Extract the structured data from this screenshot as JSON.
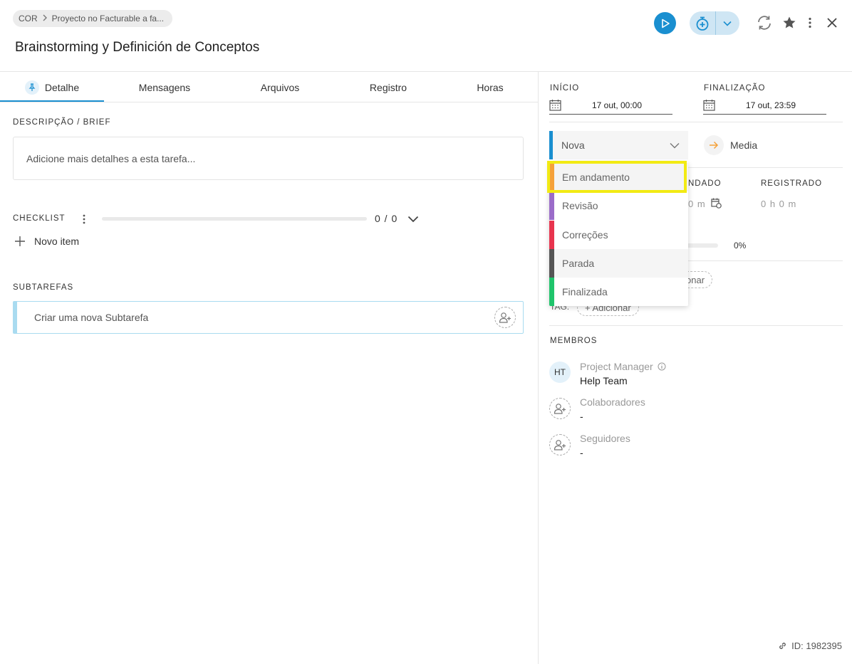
{
  "header": {
    "breadcrumb": {
      "root": "COR",
      "separator": ">",
      "project": "Proyecto no Facturable a fa..."
    },
    "title": "Brainstorming y Definición de Conceptos"
  },
  "tabs": [
    {
      "label": "Detalhe",
      "active": true
    },
    {
      "label": "Mensagens"
    },
    {
      "label": "Arquivos"
    },
    {
      "label": "Registro"
    },
    {
      "label": "Horas"
    }
  ],
  "detail": {
    "description_label": "DESCRIPÇÃO / BRIEF",
    "description_placeholder": "Adicione mais detalhes a esta tarefa...",
    "checklist_label": "CHECKLIST",
    "checklist_count": "0 / 0",
    "new_item": "Novo item",
    "subtasks_label": "SUBTAREFAS",
    "subtask_placeholder": "Criar uma nova Subtarefa"
  },
  "dates": {
    "start_label": "INÍCIO",
    "start_value": "17 out, 00:00",
    "end_label": "FINALIZAÇÃO",
    "end_value": "17 out, 23:59"
  },
  "status": {
    "current": "Nova",
    "options": [
      {
        "label": "Em andamento",
        "color": "#f5a13a"
      },
      {
        "label": "Revisão",
        "color": "#9b6cc9"
      },
      {
        "label": "Correções",
        "color": "#e8344e"
      },
      {
        "label": "Parada",
        "color": "#555555"
      },
      {
        "label": "Finalizada",
        "color": "#1fc46b"
      }
    ]
  },
  "priority": {
    "label": "Media",
    "color": "#f5a13a"
  },
  "time": {
    "estimated_label_partial": "NDADO",
    "estimated_value_partial": "0 m",
    "registered_label": "REGISTRADO",
    "registered_value": "0 h 0 m",
    "progress": "0%"
  },
  "extras": {
    "add_partial": "onar",
    "tag_label_partial": "TAG:",
    "tag_add": "+ Adicionar"
  },
  "members": {
    "label": "MEMBROS",
    "pm_role": "Project Manager",
    "pm_initials": "HT",
    "pm_name": "Help Team",
    "collab_role": "Colaboradores",
    "collab_value": "-",
    "followers_role": "Seguidores",
    "followers_value": "-"
  },
  "footer": {
    "id": "ID: 1982395"
  },
  "colors": {
    "accent": "#1a8fd0",
    "highlight": "#f2ea13"
  }
}
